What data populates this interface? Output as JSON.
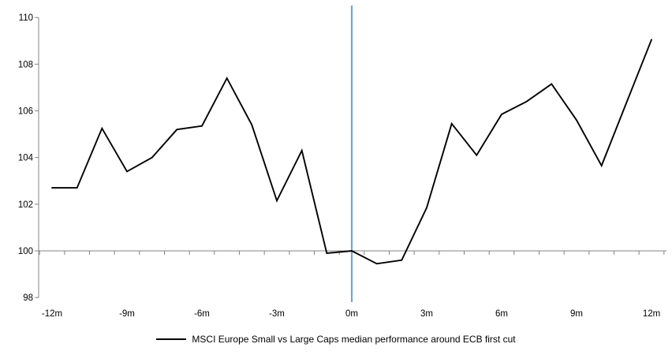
{
  "chart_data": {
    "type": "line",
    "title": "",
    "x_months": [
      -12,
      -11,
      -10,
      -9,
      -8,
      -7,
      -6,
      -5,
      -4,
      -3,
      -2,
      -1,
      0,
      1,
      2,
      3,
      4,
      5,
      6,
      7,
      8,
      9,
      10,
      11,
      12
    ],
    "series": [
      {
        "name": "MSCI Europe Small vs Large Caps median performance around ECB first cut",
        "color": "#000000",
        "values": [
          102.7,
          102.7,
          105.25,
          103.4,
          104.0,
          105.2,
          105.35,
          107.4,
          105.4,
          102.15,
          104.3,
          99.9,
          100.0,
          99.45,
          99.6,
          101.85,
          105.45,
          104.1,
          105.85,
          106.4,
          107.15,
          105.6,
          103.65,
          106.35,
          109.05
        ]
      }
    ],
    "x_tick_labels": [
      "-12m",
      "-9m",
      "-6m",
      "-3m",
      "0m",
      "3m",
      "6m",
      "9m",
      "12m"
    ],
    "x_label_months": [
      -12,
      -9,
      -6,
      -3,
      0,
      3,
      6,
      9,
      12
    ],
    "y_ticks": [
      98,
      100,
      102,
      104,
      106,
      108,
      110
    ],
    "ylim": [
      98,
      110
    ],
    "x_axis_cross_value": 100,
    "event_line": {
      "x_month": 0,
      "color": "#74A6D2"
    },
    "axis_color": "#848484",
    "grid": false,
    "legend_position": "bottom"
  },
  "legend": {
    "series_label": "MSCI Europe Small vs Large Caps median performance around ECB first cut",
    "swatch_color": "#000000"
  }
}
